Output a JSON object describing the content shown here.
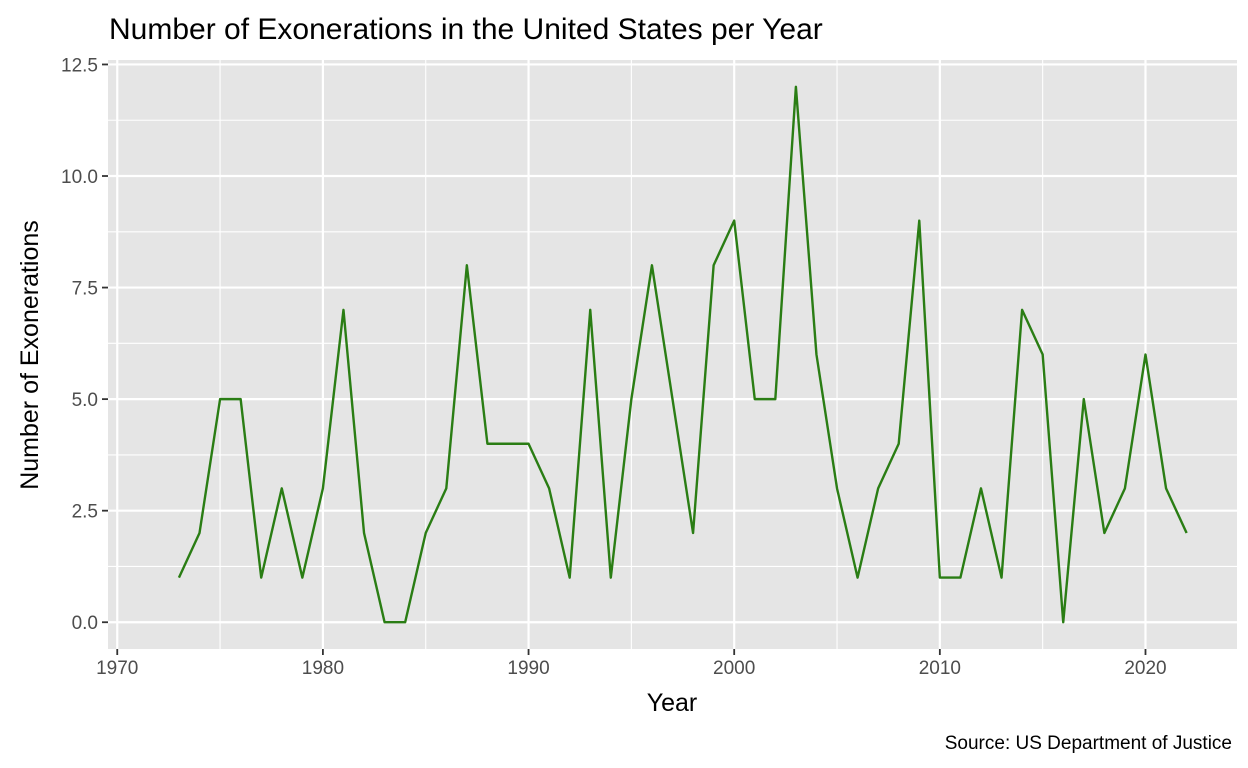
{
  "chart_data": {
    "type": "line",
    "title": "Number of Exonerations in the United States per Year",
    "xlabel": "Year",
    "ylabel": "Number of Exonerations",
    "caption": "Source: US Department of Justice",
    "xlim": [
      1969.55,
      2024.45
    ],
    "ylim": [
      -0.6,
      12.6
    ],
    "x_ticks": [
      1970,
      1980,
      1990,
      2000,
      2010,
      2020
    ],
    "y_ticks": [
      0,
      2.5,
      5,
      7.5,
      10,
      12.5
    ],
    "x_tick_labels": [
      "1970",
      "1980",
      "1990",
      "2000",
      "2010",
      "2020"
    ],
    "y_tick_labels": [
      "0.0",
      "2.5",
      "5.0",
      "7.5",
      "10.0",
      "12.5"
    ],
    "grid": true,
    "panel_color": "#e5e5e5",
    "grid_color": "#ffffff",
    "line_color": "#2a7d14",
    "series": [
      {
        "x": [
          1973,
          1974,
          1975,
          1976,
          1977,
          1978,
          1979,
          1980,
          1981,
          1982,
          1983,
          1984,
          1985,
          1986,
          1987,
          1988,
          1989,
          1990,
          1991,
          1992,
          1993,
          1994,
          1995,
          1996,
          1997,
          1998,
          1999,
          2000,
          2001,
          2002,
          2003,
          2004,
          2005,
          2006,
          2007,
          2008,
          2009,
          2010,
          2011,
          2012,
          2013,
          2014,
          2015,
          2016,
          2017,
          2018,
          2019,
          2020,
          2021,
          2022
        ],
        "values": [
          1,
          2,
          5,
          5,
          1,
          3,
          1,
          3,
          7,
          2,
          0,
          0,
          2,
          3,
          8,
          4,
          4,
          4,
          3,
          1,
          7,
          1,
          5,
          8,
          5,
          2,
          8,
          9,
          5,
          5,
          12,
          6,
          3,
          1,
          3,
          4,
          9,
          1,
          1,
          3,
          1,
          7,
          6,
          0,
          5,
          2,
          3,
          6,
          3,
          2
        ]
      }
    ]
  }
}
